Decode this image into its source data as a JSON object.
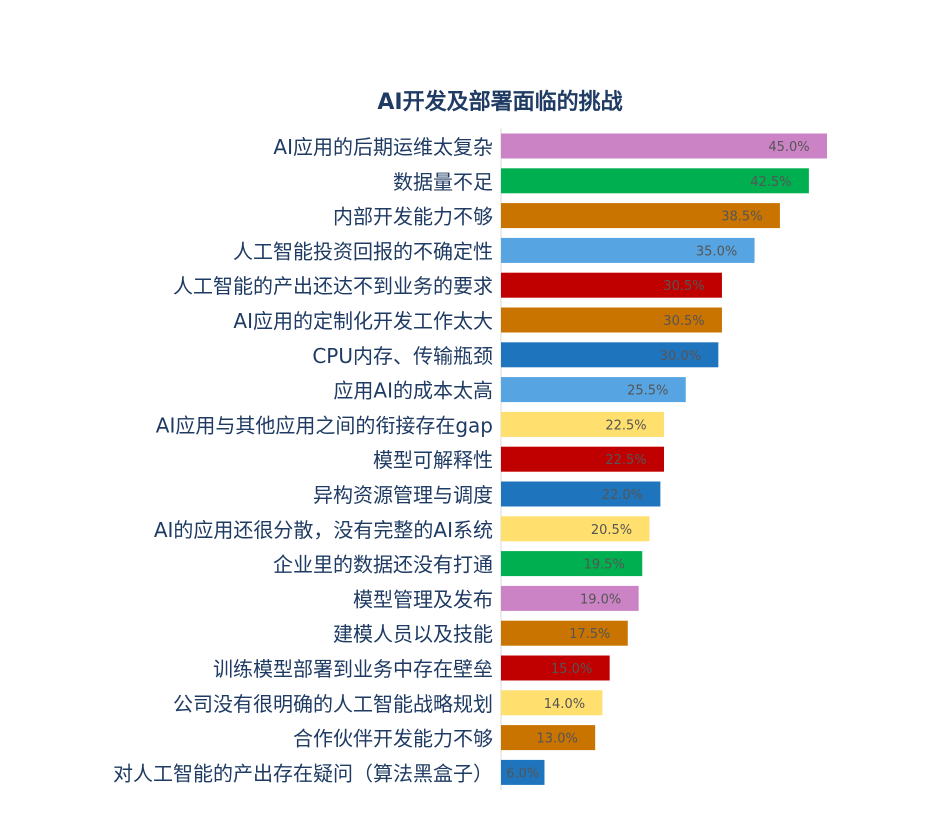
{
  "chart_data": {
    "type": "bar",
    "orientation": "horizontal",
    "title": "AI开发及部署面临的挑战",
    "xlim": [
      0,
      45
    ],
    "grid": false,
    "categories": [
      "AI应用的后期运维太复杂",
      "数据量不足",
      "内部开发能力不够",
      "人工智能投资回报的不确定性",
      "人工智能的产出还达不到业务的要求",
      "AI应用的定制化开发工作太大",
      "CPU内存、传输瓶颈",
      "应用AI的成本太高",
      "AI应用与其他应用之间的衔接存在gap",
      "模型可解释性",
      "异构资源管理与调度",
      "AI的应用还很分散，没有完整的AI系统",
      "企业里的数据还没有打通",
      "模型管理及发布",
      "建模人员以及技能",
      "训练模型部署到业务中存在壁垒",
      "公司没有很明确的人工智能战略规划",
      "合作伙伴开发能力不够",
      "对人工智能的产出存在疑问（算法黑盒子）"
    ],
    "values": [
      45.0,
      42.5,
      38.5,
      35.0,
      30.5,
      30.5,
      30.0,
      25.5,
      22.5,
      22.5,
      22.0,
      20.5,
      19.5,
      19.0,
      17.5,
      15.0,
      14.0,
      13.0,
      6.0
    ],
    "value_labels": [
      "45.0%",
      "42.5%",
      "38.5%",
      "35.0%",
      "30.5%",
      "30.5%",
      "30.0%",
      "25.5%",
      "22.5%",
      "22.5%",
      "22.0%",
      "20.5%",
      "19.5%",
      "19.0%",
      "17.5%",
      "15.0%",
      "14.0%",
      "13.0%",
      "6.0%"
    ],
    "colors": [
      "#cc83c6",
      "#00b050",
      "#c97400",
      "#56a5e2",
      "#c00000",
      "#c97400",
      "#1f74be",
      "#56a5e2",
      "#ffdf6e",
      "#c00000",
      "#1f74be",
      "#ffdf6e",
      "#00b050",
      "#cc83c6",
      "#c97400",
      "#c00000",
      "#ffdf6e",
      "#c97400",
      "#1f74be"
    ],
    "label_color": "#1f3b63",
    "value_label_color": "#555555"
  }
}
